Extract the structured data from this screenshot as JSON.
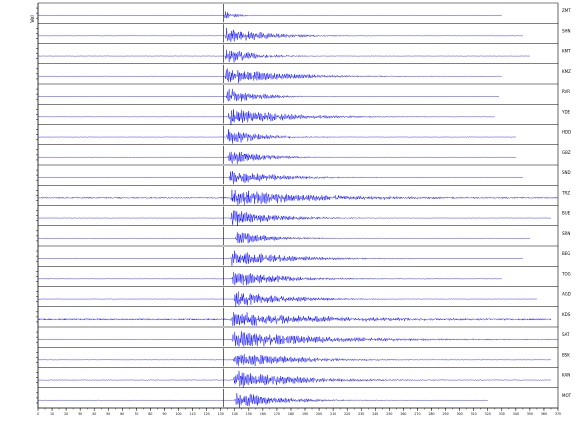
{
  "chart_data": {
    "type": "line",
    "title": "",
    "xlabel": "",
    "ylabel": "",
    "y_axis_label": "Vel",
    "x_tick_labels": [
      "0",
      "10",
      "20",
      "30",
      "40",
      "50",
      "60",
      "70",
      "80",
      "90",
      "100",
      "110",
      "120",
      "130",
      "140",
      "150",
      "160",
      "170",
      "180",
      "190",
      "200",
      "210",
      "220",
      "230",
      "240",
      "250",
      "260",
      "270",
      "280",
      "290",
      "300",
      "310",
      "320",
      "330",
      "340",
      "350",
      "360",
      "370"
    ],
    "xlim": [
      0,
      370
    ],
    "p_arrival_time": 132,
    "panel_count": 20,
    "series": [
      {
        "station": "ZMT",
        "onset": 132,
        "peak_amp": 0.45,
        "duration": 8,
        "end_time": 330,
        "noise": 0.02
      },
      {
        "station": "SHN",
        "onset": 133,
        "peak_amp": 0.9,
        "duration": 28,
        "end_time": 345,
        "noise": 0.02
      },
      {
        "station": "KMT",
        "onset": 133,
        "peak_amp": 0.85,
        "duration": 20,
        "end_time": 350,
        "noise": 0.02
      },
      {
        "station": "KMZ",
        "onset": 133,
        "peak_amp": 0.85,
        "duration": 38,
        "end_time": 330,
        "noise": 0.025
      },
      {
        "station": "RVR",
        "onset": 134,
        "peak_amp": 0.9,
        "duration": 20,
        "end_time": 328,
        "noise": 0.02
      },
      {
        "station": "YDE",
        "onset": 135,
        "peak_amp": 0.85,
        "duration": 40,
        "end_time": 325,
        "noise": 0.02
      },
      {
        "station": "HDD",
        "onset": 134,
        "peak_amp": 0.85,
        "duration": 22,
        "end_time": 340,
        "noise": 0.025
      },
      {
        "station": "GBZ",
        "onset": 135,
        "peak_amp": 0.9,
        "duration": 22,
        "end_time": 340,
        "noise": 0.02
      },
      {
        "station": "SND",
        "onset": 136,
        "peak_amp": 0.85,
        "duration": 30,
        "end_time": 345,
        "noise": 0.025
      },
      {
        "station": "TRZ",
        "onset": 137,
        "peak_amp": 0.9,
        "duration": 55,
        "end_time": 370,
        "noise": 0.06
      },
      {
        "station": "BUE",
        "onset": 137,
        "peak_amp": 0.9,
        "duration": 30,
        "end_time": 365,
        "noise": 0.02
      },
      {
        "station": "SRN",
        "onset": 140,
        "peak_amp": 0.7,
        "duration": 25,
        "end_time": 350,
        "noise": 0.02
      },
      {
        "station": "BEG",
        "onset": 137,
        "peak_amp": 0.85,
        "duration": 38,
        "end_time": 345,
        "noise": 0.025
      },
      {
        "station": "TOG",
        "onset": 138,
        "peak_amp": 0.85,
        "duration": 32,
        "end_time": 330,
        "noise": 0.03
      },
      {
        "station": "AGD",
        "onset": 139,
        "peak_amp": 0.85,
        "duration": 35,
        "end_time": 355,
        "noise": 0.02
      },
      {
        "station": "KDS",
        "onset": 137,
        "peak_amp": 0.8,
        "duration": 60,
        "end_time": 365,
        "noise": 0.08
      },
      {
        "station": "SAT",
        "onset": 138,
        "peak_amp": 0.9,
        "duration": 60,
        "end_time": 370,
        "noise": 0.03
      },
      {
        "station": "BSK",
        "onset": 139,
        "peak_amp": 0.85,
        "duration": 40,
        "end_time": 365,
        "noise": 0.025
      },
      {
        "station": "KAN",
        "onset": 139,
        "peak_amp": 0.9,
        "duration": 45,
        "end_time": 365,
        "noise": 0.03
      },
      {
        "station": "MOT",
        "onset": 140,
        "peak_amp": 0.85,
        "duration": 30,
        "end_time": 320,
        "noise": 0.02
      }
    ],
    "colors": {
      "trace": "#0000ff",
      "axis": "#000000",
      "pick": "#000000"
    }
  }
}
